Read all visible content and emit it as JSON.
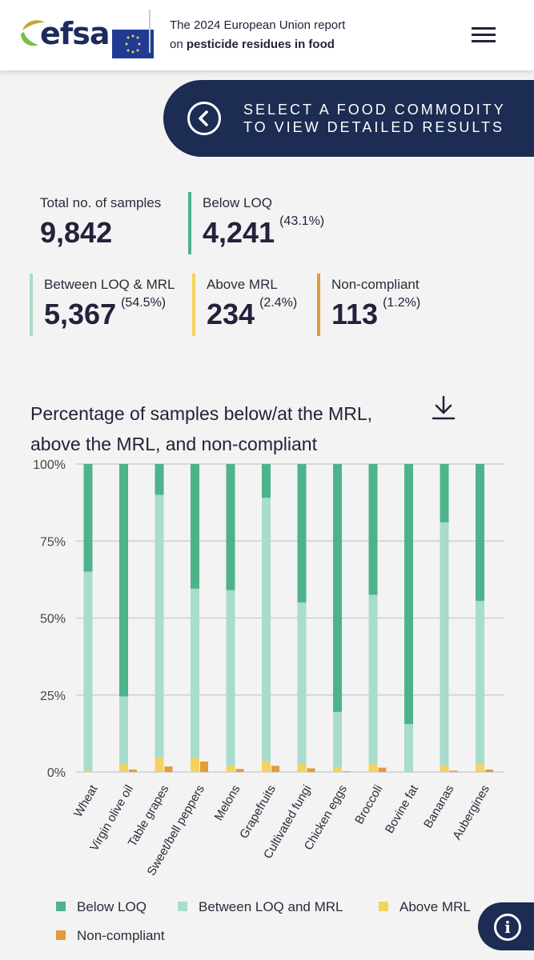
{
  "header": {
    "logo_text": "efsa",
    "title_line1": "The 2024 European Union report",
    "title_prefix": "on ",
    "title_bold": "pesticide residues in food"
  },
  "banner": {
    "line1": "SELECT A FOOD COMMODITY",
    "line2": "TO VIEW DETAILED RESULTS",
    "icon": "chevron-left-circle-icon"
  },
  "stats": {
    "total": {
      "label": "Total no. of samples",
      "value": "9,842"
    },
    "below_loq": {
      "label": "Below LOQ",
      "value": "4,241",
      "pct": "(43.1%)"
    },
    "between": {
      "label": "Between LOQ & MRL",
      "value": "5,367",
      "pct": "(54.5%)"
    },
    "above": {
      "label": "Above MRL",
      "value": "234",
      "pct": "(2.4%)"
    },
    "noncompliant": {
      "label": "Non-compliant",
      "value": "113",
      "pct": "(1.2%)"
    }
  },
  "colors": {
    "below_loq": "#4db38a",
    "between": "#a8dccd",
    "above": "#f5d25e",
    "noncompliant": "#e39a3b",
    "stat_total_bar": "#4db38a"
  },
  "chart_data": {
    "type": "bar",
    "title": "Percentage of samples below/at the MRL, above the MRL, and non-compliant",
    "ylim": [
      0,
      100
    ],
    "yticks": [
      "100%",
      "75%",
      "50%",
      "25%",
      "0%"
    ],
    "categories": [
      "Wheat",
      "Virgin olive oil",
      "Table grapes",
      "Sweet/bell peppers",
      "Melons",
      "Grapefruits",
      "Cultivated fungi",
      "Chicken eggs",
      "Broccoli",
      "Bovine fat",
      "Bananas",
      "Aubergines"
    ],
    "series": [
      {
        "name": "Below LOQ",
        "values": [
          35,
          75.5,
          10,
          40.5,
          41,
          11,
          45,
          80.5,
          42.5,
          84.5,
          19,
          44.5
        ]
      },
      {
        "name": "Between LOQ and MRL",
        "values": [
          64.5,
          22,
          85.5,
          55,
          57,
          85.5,
          52.5,
          18,
          55,
          15.5,
          79,
          53
        ]
      },
      {
        "name": "Above MRL",
        "values": [
          0.5,
          2.5,
          4.5,
          4.5,
          2,
          3.5,
          2.5,
          1.5,
          2.5,
          0,
          2,
          2.5
        ]
      },
      {
        "name": "Non-compliant",
        "values": [
          0,
          0.8,
          1.8,
          3.4,
          1,
          2,
          1.2,
          0.2,
          1.4,
          0,
          0.4,
          0.8
        ]
      }
    ],
    "legend_position": "bottom",
    "grid": true
  }
}
